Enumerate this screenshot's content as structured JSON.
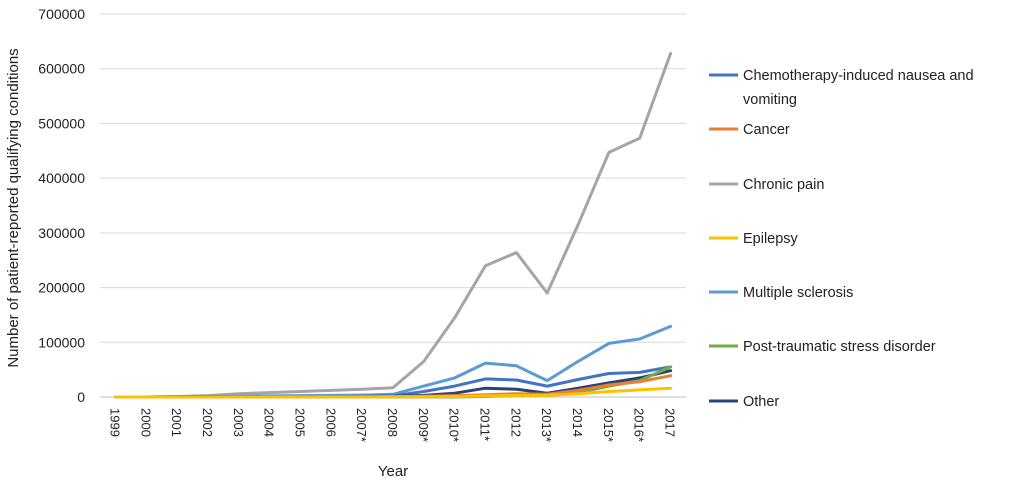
{
  "chart_data": {
    "type": "line",
    "xlabel": "Year",
    "ylabel": "Number of patient-reported qualifying conditions",
    "ylim": [
      0,
      700000
    ],
    "yticks": [
      "0",
      "100000",
      "200000",
      "300000",
      "400000",
      "500000",
      "600000",
      "700000"
    ],
    "categories": [
      "1999",
      "2000",
      "2001",
      "2002",
      "2003",
      "2004",
      "2005",
      "2006",
      "2007*",
      "2008",
      "2009*",
      "2010*",
      "2011*",
      "2012",
      "2013*",
      "2014",
      "2015*",
      "2016*",
      "2017"
    ],
    "grid": "horizontal",
    "legend_position": "right",
    "series": [
      {
        "name": "Chemotherapy-induced nausea and vomiting",
        "color": "#4472C4",
        "values": [
          0,
          0,
          300,
          500,
          700,
          800,
          900,
          1000,
          1200,
          2000,
          10000,
          20000,
          33000,
          31000,
          20000,
          32000,
          43000,
          45000,
          55000
        ]
      },
      {
        "name": "Cancer",
        "color": "#ED7D31",
        "values": [
          0,
          0,
          0,
          100,
          200,
          300,
          300,
          400,
          500,
          700,
          1500,
          2500,
          4000,
          6000,
          5000,
          12000,
          22000,
          28000,
          39000
        ]
      },
      {
        "name": "Chronic pain",
        "color": "#A5A5A5",
        "values": [
          0,
          0,
          1000,
          2500,
          6000,
          8000,
          10000,
          12000,
          14000,
          17000,
          65000,
          145000,
          240000,
          264000,
          190000,
          315000,
          447000,
          473000,
          628000
        ]
      },
      {
        "name": "Epilepsy",
        "color": "#FFC000",
        "values": [
          0,
          0,
          0,
          50,
          100,
          100,
          150,
          200,
          250,
          300,
          500,
          1000,
          2000,
          3000,
          3000,
          6000,
          10000,
          13000,
          16000
        ]
      },
      {
        "name": "Multiple sclerosis",
        "color": "#5B9BD5",
        "values": [
          0,
          0,
          500,
          1000,
          1500,
          2000,
          2500,
          3000,
          3500,
          5000,
          20000,
          35000,
          62000,
          57000,
          30000,
          65000,
          98000,
          106000,
          129000
        ]
      },
      {
        "name": "Post-traumatic stress disorder",
        "color": "#70AD47",
        "values": [
          0,
          0,
          0,
          0,
          0,
          0,
          0,
          0,
          0,
          0,
          0,
          0,
          1000,
          3000,
          3000,
          8000,
          20000,
          30000,
          55000
        ]
      },
      {
        "name": "Other",
        "color": "#264478",
        "values": [
          0,
          0,
          200,
          400,
          600,
          700,
          800,
          900,
          1000,
          1500,
          3000,
          7000,
          16000,
          14000,
          7000,
          16000,
          26000,
          35000,
          48000
        ]
      }
    ]
  }
}
